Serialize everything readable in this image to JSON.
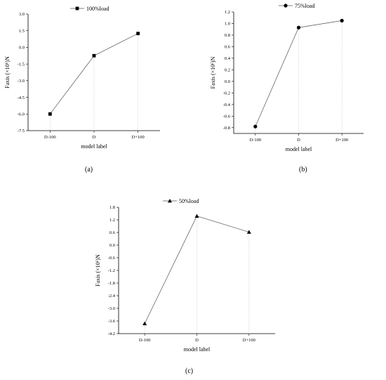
{
  "chart_data": [
    {
      "type": "line",
      "caption": "(a)",
      "categories": [
        "D-100",
        "D",
        "D+100"
      ],
      "series": [
        {
          "name": "100%load",
          "values": [
            -6.0,
            -0.75,
            1.25
          ],
          "marker": "square"
        }
      ],
      "xlabel": "model label",
      "ylabel": "Faxis (×10⁶)N",
      "ylim": [
        -7.5,
        3.0
      ],
      "yticks": [
        "3.0",
        "1.5",
        "0.0",
        "-1.5",
        "-3.0",
        "-4.5",
        "-6.0",
        "-7.5"
      ],
      "ytick_values": [
        3.0,
        1.5,
        0.0,
        -1.5,
        -3.0,
        -4.5,
        -6.0,
        -7.5
      ],
      "legend_position": "top-left",
      "grid": false
    },
    {
      "type": "line",
      "caption": "(b)",
      "categories": [
        "D-100",
        "D",
        "D+100"
      ],
      "series": [
        {
          "name": "75%load",
          "values": [
            -0.78,
            0.93,
            1.05
          ],
          "marker": "circle"
        }
      ],
      "xlabel": "model label",
      "ylabel": "Faxis (×10⁶)N",
      "ylim": [
        -0.9,
        1.2
      ],
      "yticks": [
        "1.2",
        "1.0",
        "0.8",
        "0.6",
        "0.4",
        "0.2",
        "0.0",
        "-0.2",
        "-0.4",
        "-0.6",
        "-0.8"
      ],
      "ytick_values": [
        1.2,
        1.0,
        0.8,
        0.6,
        0.4,
        0.2,
        0.0,
        -0.2,
        -0.4,
        -0.6,
        -0.8
      ],
      "legend_position": "top-left",
      "grid": false
    },
    {
      "type": "line",
      "caption": "(c)",
      "categories": [
        "D-100",
        "D",
        "D+100"
      ],
      "series": [
        {
          "name": "50%load",
          "values": [
            -3.72,
            1.38,
            0.62
          ],
          "marker": "triangle"
        }
      ],
      "xlabel": "model label",
      "ylabel": "Faxis (×10⁶)N",
      "ylim": [
        -4.2,
        1.8
      ],
      "yticks": [
        "1.8",
        "1.2",
        "0.6",
        "0.0",
        "-0.6",
        "-1.2",
        "-1.8",
        "-2.4",
        "-3.0",
        "-3.6",
        "-4.2"
      ],
      "ytick_values": [
        1.8,
        1.2,
        0.6,
        0.0,
        -0.6,
        -1.2,
        -1.8,
        -2.4,
        -3.0,
        -3.6,
        -4.2
      ],
      "legend_position": "top-left",
      "grid": false
    }
  ]
}
